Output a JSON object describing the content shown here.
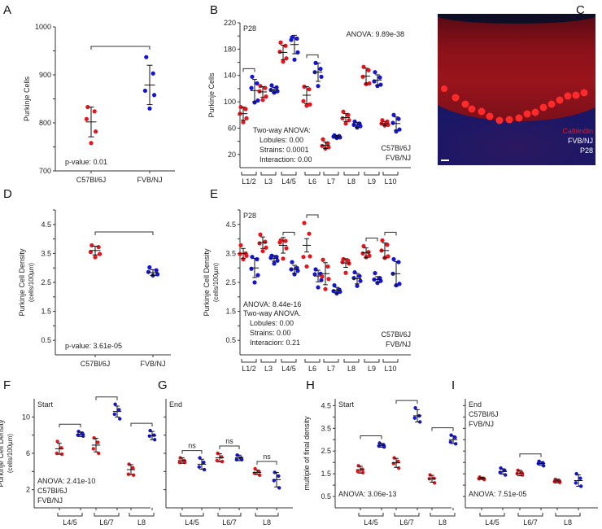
{
  "colors": {
    "c57": "#e8141b",
    "fvb": "#1515d6",
    "text": "#222222"
  },
  "panels": {
    "A": {
      "label": "A"
    },
    "B": {
      "label": "B"
    },
    "C": {
      "label": "C"
    },
    "D": {
      "label": "D"
    },
    "E": {
      "label": "E"
    },
    "F": {
      "label": "F"
    },
    "G": {
      "label": "G"
    },
    "H": {
      "label": "H"
    },
    "I": {
      "label": "I"
    }
  },
  "image_C": {
    "label": "C",
    "legend": [
      {
        "text": "Calbindin",
        "color": "#e8141b"
      },
      {
        "text": "FVB/NJ",
        "color": "#ffffff"
      },
      {
        "text": "P28",
        "color": "#ffffff"
      }
    ]
  },
  "chart_data": [
    {
      "id": "A",
      "type": "scatter",
      "title": "",
      "xlabel": "",
      "ylabel": "Purkinje Cells",
      "ylim": [
        700,
        1000
      ],
      "yticks": [
        700,
        800,
        900,
        1000
      ],
      "categories": [
        "C57Bl/6J",
        "FVB/NJ"
      ],
      "series": [
        {
          "name": "C57Bl/6J",
          "color": "#e8141b",
          "points": [
            833,
            824,
            808,
            782,
            758
          ],
          "mean": 802,
          "sd": 31
        },
        {
          "name": "FVB/NJ",
          "color": "#1515d6",
          "points": [
            937,
            903,
            867,
            858,
            830
          ],
          "mean": 879,
          "sd": 41
        }
      ],
      "annotations": [
        "p-value: 0.01"
      ],
      "significance": [
        [
          0,
          1
        ]
      ]
    },
    {
      "id": "B",
      "type": "scatter",
      "ylabel": "Purkinje Cells",
      "ylim": [
        0,
        220
      ],
      "yticks": [
        20,
        60,
        100,
        140,
        180,
        220
      ],
      "categories": [
        "L1/2",
        "L3",
        "L4/5",
        "L6",
        "L7",
        "L8",
        "L9",
        "L10"
      ],
      "series": [
        {
          "name": "C57Bl/6J",
          "color": "#e8141b",
          "values": [
            [
              92,
              89,
              82,
              75,
              69
            ],
            [
              124,
              121,
              116,
              108,
              103
            ],
            [
              190,
              185,
              176,
              166,
              161
            ],
            [
              123,
              119,
              101,
              96,
              94
            ],
            [
              43,
              37,
              33,
              31,
              29
            ],
            [
              85,
              80,
              75,
              72,
              67
            ],
            [
              153,
              148,
              138,
              128,
              127
            ],
            [
              72,
              70,
              67,
              65,
              64
            ]
          ],
          "means": [
            82,
            115,
            175,
            110,
            34,
            76,
            139,
            67
          ],
          "sds": [
            10,
            8,
            11,
            13,
            5,
            6,
            12,
            3
          ]
        },
        {
          "name": "FVB/NJ",
          "color": "#1515d6",
          "values": [
            [
              138,
              128,
              121,
              102,
              99
            ],
            [
              125,
              122,
              118,
              116,
              114
            ],
            [
              198,
              196,
              194,
              175,
              164
            ],
            [
              159,
              150,
              145,
              138,
              124
            ],
            [
              49,
              48,
              47,
              46,
              45
            ],
            [
              70,
              67,
              65,
              63,
              61
            ],
            [
              145,
              137,
              131,
              126,
              124
            ],
            [
              80,
              74,
              68,
              58,
              55
            ]
          ],
          "means": [
            117,
            118,
            187,
            145,
            47,
            65,
            133,
            67
          ],
          "sds": [
            17,
            4,
            14,
            14,
            2,
            4,
            8,
            10
          ]
        }
      ],
      "significance": [
        0,
        3
      ],
      "annotations": [
        "P28",
        "ANOVA: 9.89e-38",
        "Two-way ANOVA:",
        "Lobules: 0.00",
        "Strains: 0.0001",
        "Interaction: 0.00"
      ],
      "legend": [
        "C57Bl/6J",
        "FVB/NJ"
      ],
      "legend_position": "bottom-right"
    },
    {
      "id": "D",
      "type": "scatter",
      "ylabel": "Purkinje Cell Density",
      "ylabel2": "(cells/100µm)",
      "ylim": [
        0,
        5
      ],
      "yticks": [
        0.5,
        1.5,
        2.5,
        3.5,
        4.5
      ],
      "categories": [
        "C57Bl/6J",
        "FVB/NJ"
      ],
      "series": [
        {
          "name": "C57Bl/6J",
          "color": "#e8141b",
          "points": [
            3.78,
            3.72,
            3.55,
            3.48,
            3.37
          ],
          "mean": 3.6,
          "sd": 0.15
        },
        {
          "name": "FVB/NJ",
          "color": "#1515d6",
          "points": [
            3.02,
            2.92,
            2.86,
            2.78,
            2.74
          ],
          "mean": 2.84,
          "sd": 0.1
        }
      ],
      "annotations": [
        "p-value: 3.61e-05"
      ],
      "significance": [
        [
          0,
          1
        ]
      ]
    },
    {
      "id": "E",
      "type": "scatter",
      "ylabel": "Purkinje Cell Density",
      "ylabel2": "(cells/100µm)",
      "ylim": [
        0,
        5
      ],
      "yticks": [
        0.5,
        1.5,
        2.5,
        3.5,
        4.5
      ],
      "categories": [
        "L1/2",
        "L3",
        "L4/5",
        "L6",
        "L7",
        "L8",
        "L9",
        "L10"
      ],
      "series": [
        {
          "name": "C57Bl/6J",
          "color": "#e8141b",
          "values": [
            [
              3.78,
              3.5,
              3.48,
              3.42,
              3.3
            ],
            [
              4.15,
              3.9,
              3.85,
              3.7,
              3.58
            ],
            [
              3.95,
              3.93,
              3.88,
              3.68,
              3.32
            ],
            [
              4.55,
              4.18,
              3.38,
              3.4,
              3.05
            ],
            [
              3.28,
              3.05,
              2.7,
              2.62,
              2.27
            ],
            [
              3.3,
              3.25,
              3.2,
              3.15,
              2.83
            ],
            [
              3.75,
              3.55,
              3.5,
              3.42,
              3.37
            ],
            [
              3.95,
              3.8,
              3.6,
              3.4,
              3.35
            ]
          ],
          "means": [
            3.5,
            3.87,
            3.78,
            3.78,
            2.8,
            3.17,
            3.52,
            3.6
          ],
          "sds": [
            0.17,
            0.2,
            0.27,
            0.23,
            0.38,
            0.15,
            0.17,
            0.26
          ]
        },
        {
          "name": "FVB/NJ",
          "color": "#1515d6",
          "values": [
            [
              3.38,
              3.3,
              2.97,
              2.75,
              2.5
            ],
            [
              3.42,
              3.38,
              3.35,
              3.25,
              3.15
            ],
            [
              3.2,
              3.0,
              2.95,
              2.9,
              2.78
            ],
            [
              2.95,
              2.8,
              2.78,
              2.58,
              2.33
            ],
            [
              2.4,
              2.25,
              2.2,
              2.18,
              2.12
            ],
            [
              2.85,
              2.72,
              2.65,
              2.55,
              2.38
            ],
            [
              2.82,
              2.65,
              2.6,
              2.55,
              2.48
            ],
            [
              3.3,
              3.2,
              2.8,
              2.45,
              2.4
            ]
          ],
          "means": [
            3.0,
            3.33,
            2.95,
            2.72,
            2.23,
            2.63,
            2.6,
            2.8
          ],
          "sds": [
            0.33,
            0.1,
            0.14,
            0.2,
            0.1,
            0.18,
            0.1,
            0.42
          ]
        }
      ],
      "significance": [
        2,
        3,
        6,
        7
      ],
      "annotations": [
        "P28",
        "ANOVA: 8.44e-16",
        "Two-way ANOVA.",
        "Lobules: 0.00",
        "Strains: 0.00",
        "Interacion: 0.21"
      ],
      "legend": [
        "C57Bl/6J",
        "FVB/NJ"
      ],
      "legend_position": "bottom-right"
    },
    {
      "id": "F",
      "type": "scatter",
      "ylabel": "Purkinje Cell Density",
      "ylabel2": "(cells/100µm)",
      "ylim": [
        0,
        12
      ],
      "yticks": [
        2,
        6,
        10
      ],
      "minor_yticks": [
        4,
        8
      ],
      "categories": [
        "L4/5",
        "L6/7",
        "L8"
      ],
      "series": [
        {
          "name": "C57Bl/6J",
          "color": "#e8141b",
          "values": [
            [
              7.3,
              6.6,
              6.0,
              5.9
            ],
            [
              7.7,
              7.2,
              6.5,
              6.0
            ],
            [
              4.8,
              4.4,
              3.7,
              3.6
            ]
          ],
          "means": [
            6.5,
            6.9,
            4.2
          ],
          "sds": [
            0.6,
            0.75,
            0.55
          ]
        },
        {
          "name": "FVB/NJ",
          "color": "#1515d6",
          "values": [
            [
              8.4,
              8.2,
              8.0,
              7.9
            ],
            [
              11.4,
              10.8,
              10.3,
              9.8
            ],
            [
              8.5,
              8.0,
              7.9,
              7.5
            ]
          ],
          "means": [
            8.1,
            10.6,
            7.95
          ],
          "sds": [
            0.25,
            0.6,
            0.45
          ]
        }
      ],
      "significance": [
        0,
        1,
        2
      ],
      "annotations": [
        "Start",
        "ANOVA: 2.41e-10"
      ],
      "legend": [
        "C57Bl/6J",
        "FVB/NJ"
      ],
      "legend_position": "bottom-left"
    },
    {
      "id": "G",
      "type": "scatter",
      "ylabel": "",
      "ylim": [
        0,
        12
      ],
      "yticks": [],
      "minor_yticks": [
        2,
        4,
        6,
        8,
        10
      ],
      "categories": [
        "L4/5",
        "L6/7",
        "L8"
      ],
      "series": [
        {
          "name": "C57Bl/6J",
          "color": "#e8141b",
          "values": [
            [
              5.5,
              5.2,
              5.0,
              5.0
            ],
            [
              6.0,
              5.6,
              5.2,
              5.1
            ],
            [
              4.3,
              4.0,
              3.8,
              3.6
            ]
          ],
          "means": [
            5.2,
            5.5,
            3.9
          ],
          "sds": [
            0.3,
            0.45,
            0.25
          ]
        },
        {
          "name": "FVB/NJ",
          "color": "#1515d6",
          "values": [
            [
              5.5,
              5.0,
              4.5,
              4.2
            ],
            [
              5.8,
              5.5,
              5.3,
              5.3
            ],
            [
              3.9,
              3.5,
              3.0,
              2.2
            ]
          ],
          "means": [
            4.8,
            5.5,
            3.1
          ],
          "sds": [
            0.55,
            0.3,
            0.8
          ]
        }
      ],
      "significance_labels": [
        "ns",
        "ns",
        "ns"
      ],
      "annotations": [
        "End"
      ]
    },
    {
      "id": "H",
      "type": "scatter",
      "ylabel": "multiple of final density",
      "ylim": [
        0,
        4.8
      ],
      "yticks": [
        0.5,
        1.5,
        2.5,
        3.5,
        4.5
      ],
      "categories": [
        "L4/5",
        "L6/7",
        "L8"
      ],
      "series": [
        {
          "name": "C57Bl/6J",
          "color": "#e8141b",
          "values": [
            [
              1.85,
              1.7,
              1.6,
              1.55
            ],
            [
              2.2,
              2.05,
              1.95,
              1.75
            ],
            [
              1.45,
              1.3,
              1.28,
              1.1
            ]
          ],
          "means": [
            1.68,
            1.98,
            1.28
          ],
          "sds": [
            0.15,
            0.2,
            0.15
          ]
        },
        {
          "name": "FVB/NJ",
          "color": "#1515d6",
          "values": [
            [
              2.85,
              2.78,
              2.72,
              2.68
            ],
            [
              4.4,
              4.05,
              3.95,
              3.78
            ],
            [
              3.2,
              3.1,
              2.9,
              2.82
            ]
          ],
          "means": [
            2.75,
            4.05,
            3.0
          ],
          "sds": [
            0.08,
            0.27,
            0.17
          ]
        }
      ],
      "significance": [
        0,
        1,
        2
      ],
      "annotations": [
        "Start",
        "ANOVA: 3.06e-13"
      ]
    },
    {
      "id": "I",
      "type": "scatter",
      "ylabel": "",
      "ylim": [
        0,
        4.8
      ],
      "yticks": [],
      "minor_yticks": [
        0.5,
        1.0,
        1.5,
        2.0,
        2.5,
        3.0,
        3.5,
        4.0,
        4.5
      ],
      "categories": [
        "L4/5",
        "L6/7",
        "L8"
      ],
      "series": [
        {
          "name": "C57Bl/6J",
          "color": "#e8141b",
          "values": [
            [
              1.35,
              1.3,
              1.28,
              1.25
            ],
            [
              1.65,
              1.55,
              1.5,
              1.45
            ],
            [
              1.25,
              1.2,
              1.15,
              1.12
            ]
          ],
          "means": [
            1.3,
            1.53,
            1.18
          ],
          "sds": [
            0.05,
            0.12,
            0.08
          ]
        },
        {
          "name": "FVB/NJ",
          "color": "#1515d6",
          "values": [
            [
              1.75,
              1.65,
              1.55,
              1.45
            ],
            [
              2.05,
              1.98,
              1.95,
              1.85
            ],
            [
              1.5,
              1.3,
              1.1,
              0.95
            ]
          ],
          "means": [
            1.6,
            1.95,
            1.2
          ],
          "sds": [
            0.12,
            0.08,
            0.25
          ]
        }
      ],
      "significance": [
        1
      ],
      "annotations": [
        "End",
        "ANOVA: 7.51e-05"
      ],
      "legend": [
        "C57Bl/6J",
        "FVB/NJ"
      ],
      "legend_position": "top-left"
    }
  ]
}
